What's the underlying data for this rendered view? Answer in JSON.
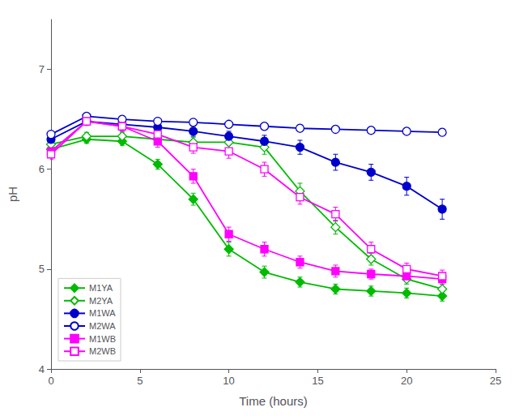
{
  "chart_data": {
    "type": "line",
    "xlabel": "Time (hours)",
    "ylabel": "pH",
    "xlim": [
      0,
      25
    ],
    "ylim": [
      4,
      7.5
    ],
    "xticks": [
      0,
      5,
      10,
      15,
      20,
      25
    ],
    "yticks": [
      4,
      5,
      6,
      7
    ],
    "grid": false,
    "legend": "lower left",
    "series": [
      {
        "name": "M1YA",
        "color": "#00bb00",
        "marker": "diamond",
        "x": [
          0,
          2,
          4,
          6,
          8,
          10,
          12,
          14,
          16,
          18,
          20,
          22
        ],
        "values": [
          6.2,
          6.3,
          6.28,
          6.05,
          5.7,
          5.2,
          4.97,
          4.87,
          4.8,
          4.78,
          4.76,
          4.73
        ],
        "yerr": [
          0.05,
          0.04,
          0.04,
          0.05,
          0.06,
          0.07,
          0.06,
          0.05,
          0.05,
          0.05,
          0.05,
          0.05
        ]
      },
      {
        "name": "M2YA",
        "color": "#00bb00",
        "marker": "open_diamond",
        "x": [
          0,
          2,
          4,
          6,
          8,
          10,
          12,
          14,
          16,
          18,
          20,
          22
        ],
        "values": [
          6.25,
          6.33,
          6.33,
          6.3,
          6.27,
          6.27,
          6.22,
          5.78,
          5.42,
          5.1,
          4.9,
          4.8
        ],
        "yerr": [
          0.05,
          0.04,
          0.04,
          0.05,
          0.05,
          0.06,
          0.07,
          0.08,
          0.07,
          0.06,
          0.05,
          0.05
        ]
      },
      {
        "name": "M1WA",
        "color": "#0000cc",
        "marker": "circle",
        "x": [
          0,
          2,
          4,
          6,
          8,
          10,
          12,
          14,
          16,
          18,
          20,
          22
        ],
        "values": [
          6.3,
          6.48,
          6.45,
          6.42,
          6.38,
          6.33,
          6.28,
          6.22,
          6.07,
          5.97,
          5.83,
          5.6
        ],
        "yerr": [
          0.05,
          0.04,
          0.05,
          0.05,
          0.05,
          0.05,
          0.06,
          0.07,
          0.08,
          0.08,
          0.09,
          0.1
        ]
      },
      {
        "name": "M2WA",
        "color": "#0000cc",
        "marker": "open_circle",
        "x": [
          0,
          2,
          4,
          6,
          8,
          10,
          12,
          14,
          16,
          18,
          20,
          22
        ],
        "values": [
          6.35,
          6.53,
          6.5,
          6.48,
          6.47,
          6.45,
          6.43,
          6.41,
          6.4,
          6.39,
          6.38,
          6.37
        ],
        "yerr": [
          0.03,
          0.03,
          0.03,
          0.03,
          0.03,
          0.03,
          0.03,
          0.03,
          0.03,
          0.03,
          0.03,
          0.03
        ]
      },
      {
        "name": "M1WB",
        "color": "#ff00ff",
        "marker": "square",
        "x": [
          0,
          2,
          4,
          6,
          8,
          10,
          12,
          14,
          16,
          18,
          20,
          22
        ],
        "values": [
          6.18,
          6.48,
          6.43,
          6.28,
          5.93,
          5.35,
          5.2,
          5.07,
          4.98,
          4.95,
          4.93,
          4.9
        ],
        "yerr": [
          0.05,
          0.04,
          0.05,
          0.06,
          0.07,
          0.07,
          0.07,
          0.06,
          0.06,
          0.05,
          0.05,
          0.05
        ]
      },
      {
        "name": "M2WB",
        "color": "#ff00ff",
        "marker": "open_square",
        "x": [
          0,
          2,
          4,
          6,
          8,
          10,
          12,
          14,
          16,
          18,
          20,
          22
        ],
        "values": [
          6.15,
          6.48,
          6.43,
          6.35,
          6.22,
          6.18,
          6.0,
          5.72,
          5.55,
          5.2,
          5.0,
          4.93
        ],
        "yerr": [
          0.05,
          0.04,
          0.05,
          0.06,
          0.06,
          0.07,
          0.07,
          0.07,
          0.07,
          0.07,
          0.06,
          0.06
        ]
      }
    ]
  }
}
